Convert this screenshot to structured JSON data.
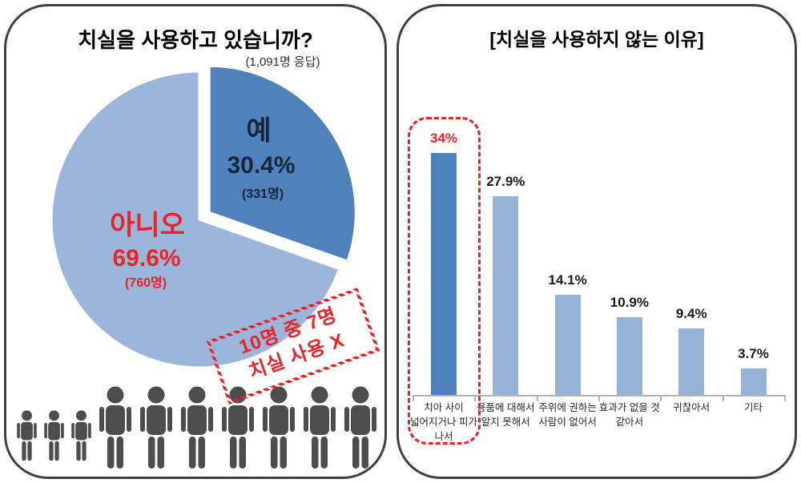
{
  "left_panel": {
    "people": {
      "small_count": 3,
      "large_count": 7,
      "color": "#4d4d4d"
    }
  },
  "right_panel": {},
  "colors": {
    "accent_dark_blue": "#4f81bd",
    "accent_light_blue": "#9cb5da",
    "bar_light_blue": "#95b3d7",
    "red": "#e8232a",
    "panel_border": "#404040",
    "axis_gray": "#b3b3b3",
    "dark_navy_text": "#152739"
  },
  "chart_data": [
    {
      "type": "pie",
      "title": "치실을 사용하고 있습니까?",
      "subtitle": "(1,091명 응답)",
      "start_angle_deg_from_top": 0,
      "direction": "clockwise",
      "slices": [
        {
          "label": "예",
          "pct": 30.4,
          "pct_label": "30.4%",
          "count": 331,
          "count_label": "(331명)",
          "color": "#4f81bd",
          "exploded": true,
          "text_color": "#152739"
        },
        {
          "label": "아니오",
          "pct": 69.6,
          "pct_label": "69.6%",
          "count": 760,
          "count_label": "(760명)",
          "color": "#9cb5da",
          "exploded": false,
          "text_color": "#e8232a"
        }
      ],
      "annotation": "10명 중 7명 치실 사용 X",
      "annotation_lines": [
        "10명 중 7명",
        "치실 사용 X"
      ],
      "legend_position": "none"
    },
    {
      "type": "bar",
      "title": "[치실을 사용하지 않는 이유]",
      "categories": [
        "치아 사이 넓어지거나 피가 나서",
        "용품에 대해서 알지 못해서",
        "주위에 권하는 사람이 없어서",
        "효과가 없을 것 같아서",
        "귀찮아서",
        "기타"
      ],
      "category_lines": [
        [
          "치아 사이",
          "넓어지거나 피가",
          "나서"
        ],
        [
          "용품에 대해서",
          "알지 못해서"
        ],
        [
          "주위에 권하는",
          "사람이 없어서"
        ],
        [
          "효과가 없을 것",
          "같아서"
        ],
        [
          "귀찮아서"
        ],
        [
          "기타"
        ]
      ],
      "values": [
        34,
        27.9,
        14.1,
        10.9,
        9.4,
        3.7
      ],
      "value_labels": [
        "34%",
        "27.9%",
        "14.1%",
        "10.9%",
        "9.4%",
        "3.7%"
      ],
      "highlight_index": 0,
      "bar_color_normal": "#95b3d7",
      "bar_color_highlight": "#4f81bd",
      "value_label_color_normal": "#1a1a1a",
      "value_label_color_highlight": "#e8232a",
      "ylim": [
        0,
        40
      ],
      "grid": false,
      "legend_position": "none"
    }
  ]
}
